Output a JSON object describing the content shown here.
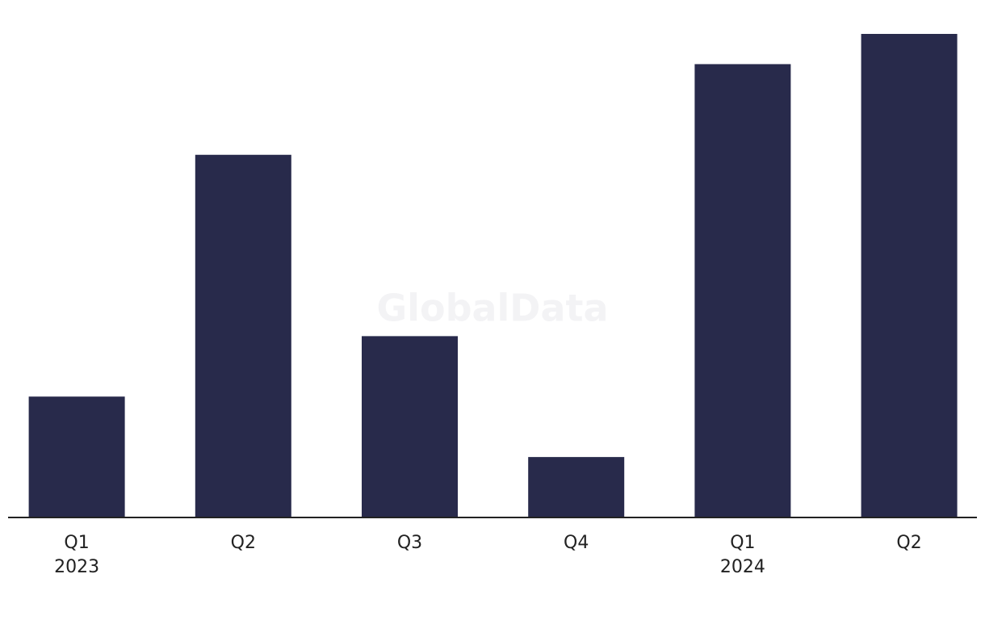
{
  "chart_data": {
    "type": "bar",
    "watermark": "GlobalData",
    "categories": [
      "Q1\n2023",
      "Q2",
      "Q3",
      "Q4",
      "Q1\n2024",
      "Q2"
    ],
    "values": [
      2,
      6,
      3,
      1,
      7.5,
      8
    ],
    "color": "#282a4b"
  }
}
